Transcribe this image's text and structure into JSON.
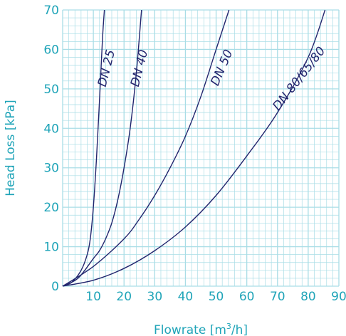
{
  "colors": {
    "accent": "#1fa4b8",
    "curve": "#22266e",
    "grid": "#a9dde6",
    "tick_text": "#1fa4b8"
  },
  "chart_data": {
    "type": "line",
    "title": "",
    "xlabel_main": "Flowrate [m",
    "xlabel_sup": "3",
    "xlabel_end": "/h]",
    "ylabel": "Head Loss [kPa]",
    "xlim": [
      0,
      90
    ],
    "ylim": [
      0,
      70
    ],
    "x_ticks": [
      10,
      20,
      30,
      40,
      50,
      60,
      70,
      80,
      90
    ],
    "y_ticks": [
      0,
      10,
      20,
      30,
      40,
      50,
      60,
      70
    ],
    "grid": true,
    "series": [
      {
        "name": "DN 25",
        "x": [
          0,
          3,
          6,
          8,
          9,
          10,
          11,
          12,
          13,
          13.6
        ],
        "y": [
          0,
          1,
          4,
          8,
          12,
          20,
          32,
          47,
          63,
          70
        ]
      },
      {
        "name": "DN 40",
        "x": [
          0,
          5,
          10,
          12,
          14,
          16,
          18,
          20,
          22,
          24,
          25.7
        ],
        "y": [
          0,
          2,
          7,
          9,
          12,
          16,
          22,
          30,
          40,
          54,
          70
        ]
      },
      {
        "name": "DN 50",
        "x": [
          0,
          10,
          20,
          25,
          30,
          35,
          40,
          45,
          50,
          54.2
        ],
        "y": [
          0,
          5,
          12,
          17,
          23,
          30,
          38,
          48,
          60,
          70
        ]
      },
      {
        "name": "DN 80/65/80",
        "x": [
          0,
          10,
          20,
          30,
          40,
          50,
          60,
          70,
          80,
          85.5
        ],
        "y": [
          0,
          1.5,
          4.5,
          9,
          15,
          23,
          33,
          44,
          58,
          70
        ]
      }
    ]
  }
}
